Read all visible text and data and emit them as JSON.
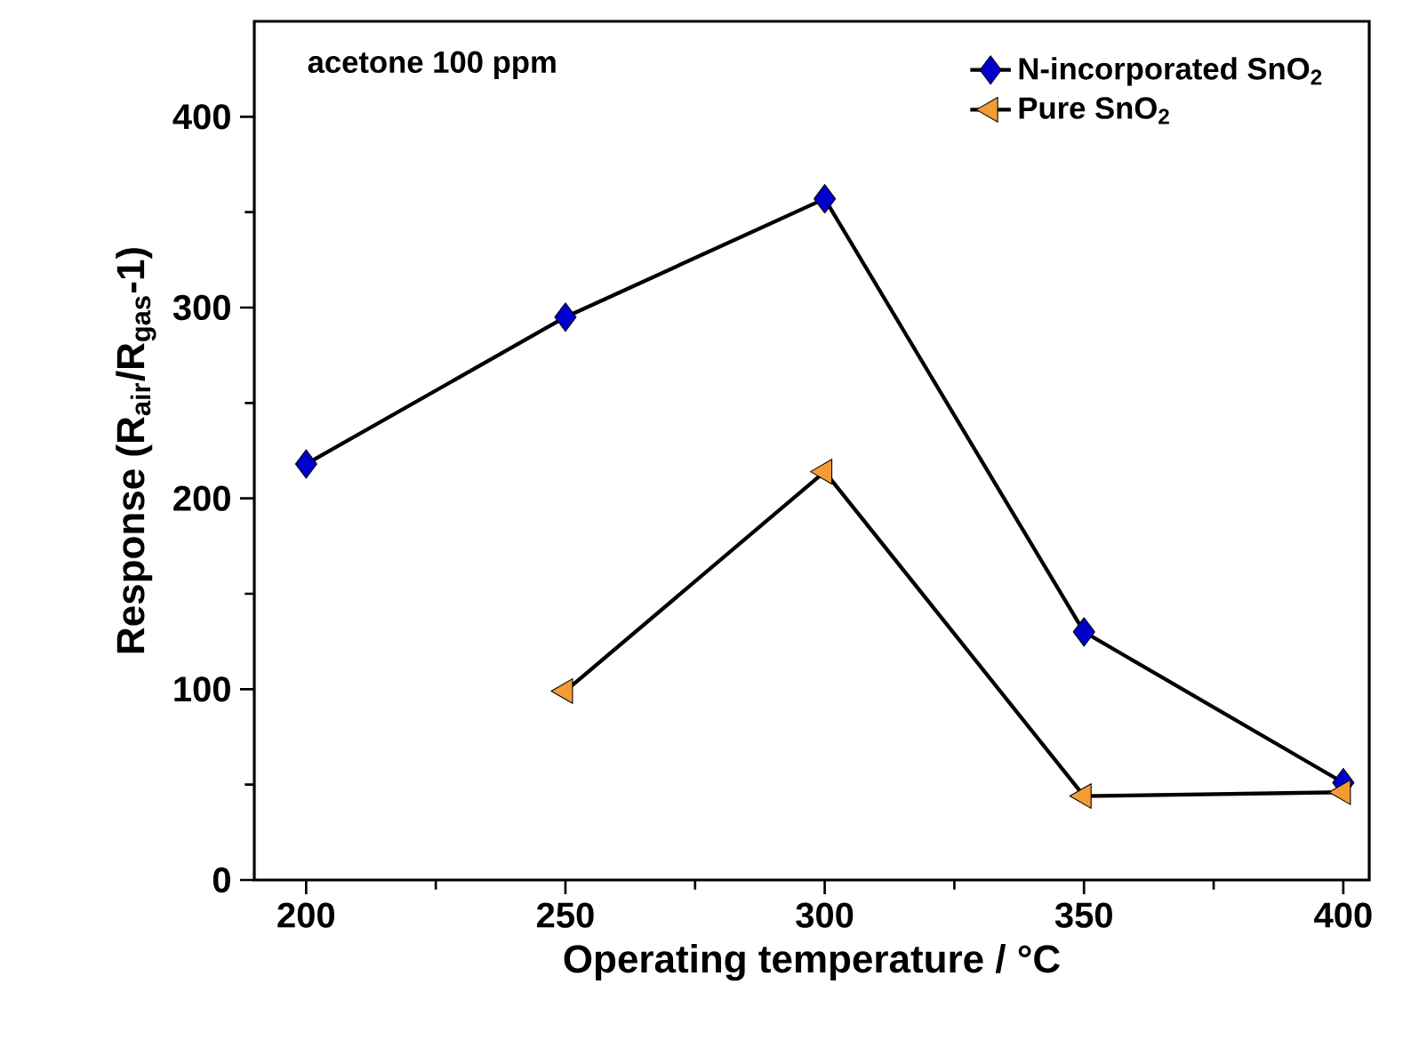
{
  "chart_data": {
    "type": "line",
    "xlabel": "Operating temperature / °C",
    "ylabel": "Response (R$_{air}$/R$_{gas}$-1)",
    "annotations": [
      "acetone 100 ppm"
    ],
    "x": [
      200,
      250,
      300,
      350,
      400
    ],
    "series": [
      {
        "name": "N-incorporated SnO$_{2}$",
        "color": "#0000cc",
        "marker": "diamond",
        "values": [
          218,
          295,
          357,
          130,
          51
        ]
      },
      {
        "name": "Pure SnO$_{2}$",
        "color": "#f39c35",
        "marker": "triangle",
        "values": [
          null,
          99,
          214,
          44,
          46
        ]
      }
    ],
    "xlim": [
      190,
      405
    ],
    "xticks": [
      200,
      250,
      300,
      350,
      400
    ],
    "ylim": [
      0,
      450
    ],
    "yticks": [
      0,
      100,
      200,
      300,
      400
    ],
    "grid": false,
    "legend": "top right",
    "line_style": "solid"
  }
}
